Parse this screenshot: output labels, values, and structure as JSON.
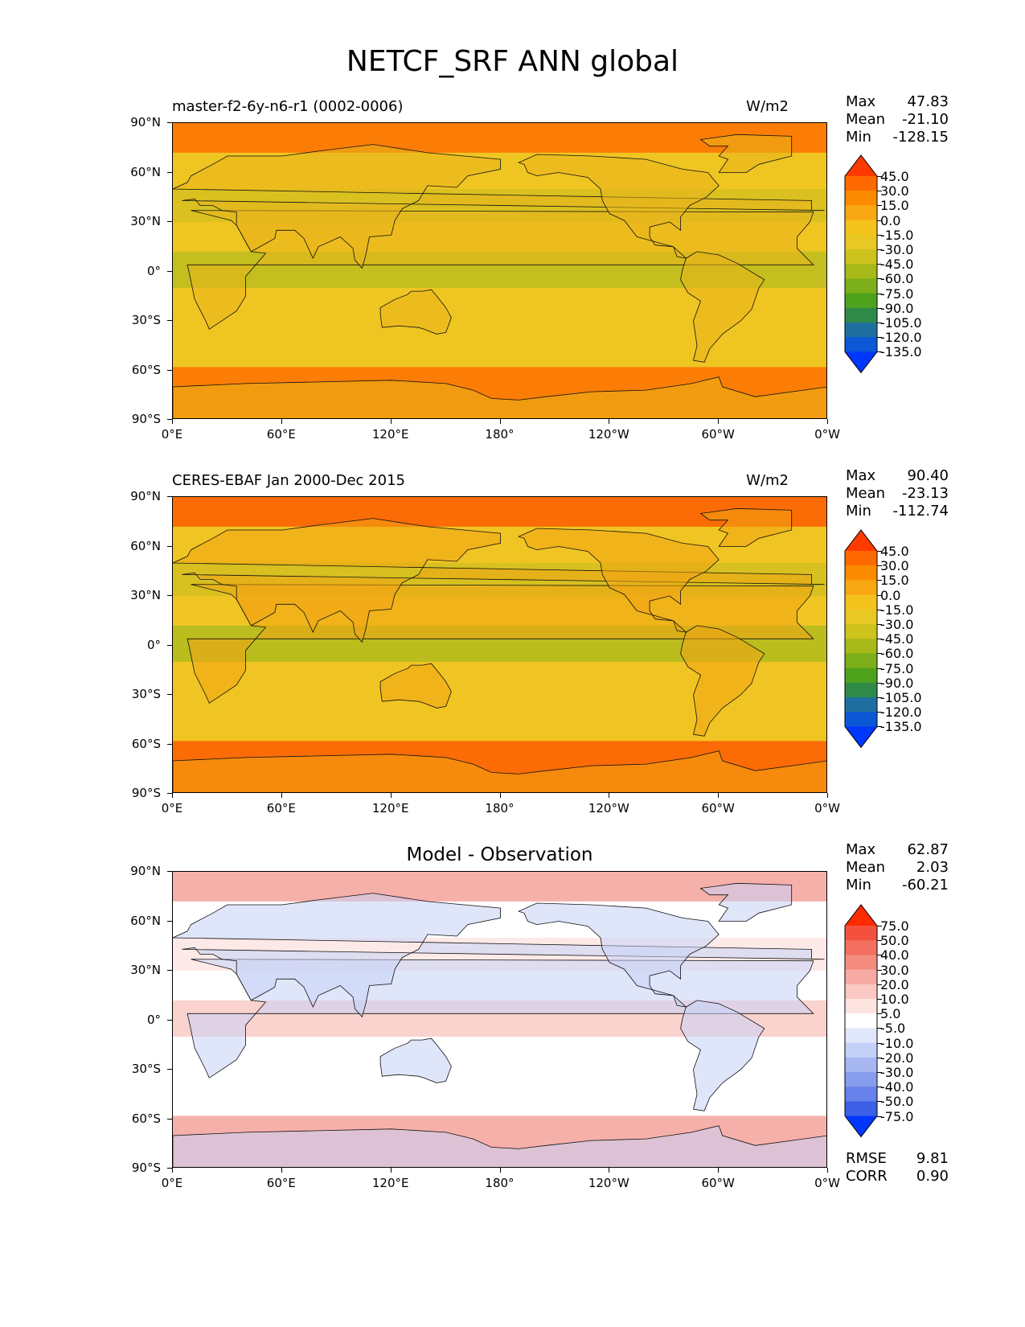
{
  "figure_title": "NETCF_SRF ANN global",
  "panels": [
    {
      "title_left": "master-f2-6y-n6-r1 (0002-0006)",
      "title_right": "W/m2",
      "stats": [
        {
          "label": "Max",
          "value": "47.83"
        },
        {
          "label": "Mean",
          "value": "-21.10"
        },
        {
          "label": "Min",
          "value": "-128.15"
        }
      ],
      "colorbar": {
        "levels": [
          "45.0",
          "30.0",
          "15.0",
          "0.0",
          "-15.0",
          "-30.0",
          "-45.0",
          "-60.0",
          "-75.0",
          "-90.0",
          "-105.0",
          "-120.0",
          "-135.0"
        ],
        "colors": [
          "#ff3a00",
          "#ff6a00",
          "#fb8c00",
          "#f8a812",
          "#f4c21c",
          "#e9c823",
          "#cec21d",
          "#a7b919",
          "#7daf1b",
          "#4ea21c",
          "#2f8a48",
          "#1e6fa0",
          "#0b58d6",
          "#0037ff"
        ]
      },
      "map_colors": {
        "polar": "#fb7d06",
        "mid": "#efc522",
        "tropic": "#b5bb1d",
        "land": "#e9b41c"
      }
    },
    {
      "title_left": "CERES-EBAF Jan 2000-Dec 2015",
      "title_right": "W/m2",
      "stats": [
        {
          "label": "Max",
          "value": "90.40"
        },
        {
          "label": "Mean",
          "value": "-23.13"
        },
        {
          "label": "Min",
          "value": "-112.74"
        }
      ],
      "colorbar": {
        "levels": [
          "45.0",
          "30.0",
          "15.0",
          "0.0",
          "-15.0",
          "-30.0",
          "-45.0",
          "-60.0",
          "-75.0",
          "-90.0",
          "-105.0",
          "-120.0",
          "-135.0"
        ],
        "colors": [
          "#ff3a00",
          "#ff6a00",
          "#fb8c00",
          "#f8a812",
          "#f4c21c",
          "#e9c823",
          "#cec21d",
          "#a7b919",
          "#7daf1b",
          "#4ea21c",
          "#2f8a48",
          "#1e6fa0",
          "#0b58d6",
          "#0037ff"
        ]
      },
      "map_colors": {
        "polar": "#fb6c06",
        "mid": "#f0c523",
        "tropic": "#a9b81c",
        "land": "#f1a414"
      }
    },
    {
      "title_center": "Model - Observation",
      "stats": [
        {
          "label": "Max",
          "value": "62.87"
        },
        {
          "label": "Mean",
          "value": "2.03"
        },
        {
          "label": "Min",
          "value": "-60.21"
        }
      ],
      "extra_stats": [
        {
          "label": "RMSE",
          "value": "9.81"
        },
        {
          "label": "CORR",
          "value": "0.90"
        }
      ],
      "colorbar": {
        "levels": [
          "75.0",
          "50.0",
          "40.0",
          "30.0",
          "20.0",
          "10.0",
          "5.0",
          "-5.0",
          "-10.0",
          "-20.0",
          "-30.0",
          "-40.0",
          "-50.0",
          "-75.0"
        ],
        "colors": [
          "#ff2a00",
          "#f3503e",
          "#f26e5f",
          "#f48c80",
          "#f7aaa3",
          "#fbc9c4",
          "#fde4e1",
          "#ffffff",
          "#e1e7fb",
          "#c4d0f7",
          "#a6b7f2",
          "#869dee",
          "#6681ea",
          "#3d5fe6",
          "#0037ff"
        ]
      },
      "map_colors": {
        "polar": "#f6b0aa",
        "mid": "#ffffff",
        "tropic": "#f8c3bd",
        "land": "#c7d2f6"
      }
    }
  ],
  "axes": {
    "y_ticks": [
      "90°N",
      "60°N",
      "30°N",
      "0°",
      "30°S",
      "60°S",
      "90°S"
    ],
    "x_ticks": [
      "0°E",
      "60°E",
      "120°E",
      "180°",
      "120°W",
      "60°W",
      "0°W"
    ]
  },
  "chart_data": {
    "type": "heatmap",
    "variable": "NETCF_SRF",
    "season": "ANN",
    "region": "global",
    "units": "W/m2",
    "xlim": [
      0,
      360
    ],
    "ylim": [
      -90,
      90
    ],
    "panels": [
      {
        "name": "master-f2-6y-n6-r1 (0002-0006)",
        "max": 47.83,
        "mean": -21.1,
        "min": -128.15
      },
      {
        "name": "CERES-EBAF Jan 2000-Dec 2015",
        "max": 90.4,
        "mean": -23.13,
        "min": -112.74
      },
      {
        "name": "Model - Observation",
        "max": 62.87,
        "mean": 2.03,
        "min": -60.21,
        "rmse": 9.81,
        "corr": 0.9
      }
    ]
  }
}
